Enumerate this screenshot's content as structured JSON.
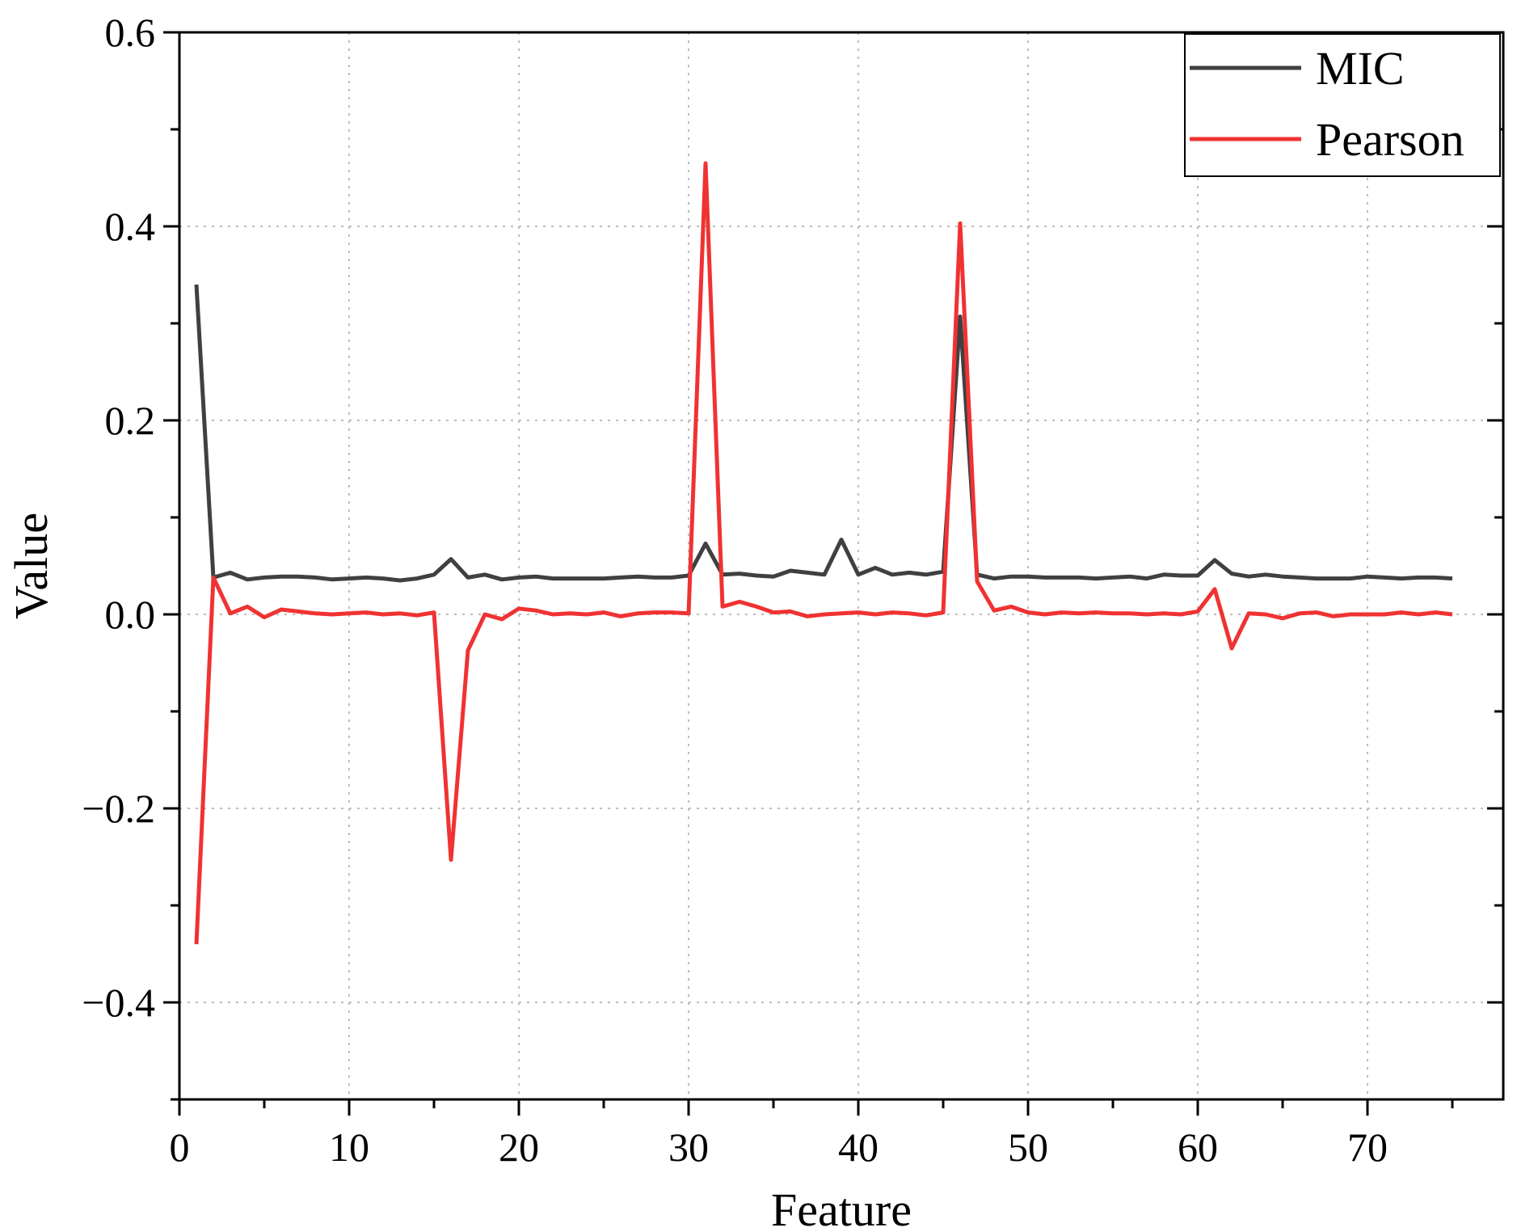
{
  "chart_data": {
    "type": "line",
    "xlabel": "Feature",
    "ylabel": "Value",
    "xlim": [
      0,
      78
    ],
    "ylim": [
      -0.5,
      0.6
    ],
    "xticks": [
      0,
      10,
      20,
      30,
      40,
      50,
      60,
      70
    ],
    "yticks": [
      -0.4,
      -0.2,
      0.0,
      0.2,
      0.4,
      0.6
    ],
    "xtick_labels": [
      "0",
      "10",
      "20",
      "30",
      "40",
      "50",
      "60",
      "70"
    ],
    "ytick_labels": [
      "−0.4",
      "−0.2",
      "0.0",
      "0.2",
      "0.4",
      "0.6"
    ],
    "grid": true,
    "legend_position": "top-right",
    "x": [
      1,
      2,
      3,
      4,
      5,
      6,
      7,
      8,
      9,
      10,
      11,
      12,
      13,
      14,
      15,
      16,
      17,
      18,
      19,
      20,
      21,
      22,
      23,
      24,
      25,
      26,
      27,
      28,
      29,
      30,
      31,
      32,
      33,
      34,
      35,
      36,
      37,
      38,
      39,
      40,
      41,
      42,
      43,
      44,
      45,
      46,
      47,
      48,
      49,
      50,
      51,
      52,
      53,
      54,
      55,
      56,
      57,
      58,
      59,
      60,
      61,
      62,
      63,
      64,
      65,
      66,
      67,
      68,
      69,
      70,
      71,
      72,
      73,
      74,
      75
    ],
    "series": [
      {
        "name": "MIC",
        "color": "#404040",
        "values": [
          0.34,
          0.038,
          0.043,
          0.036,
          0.038,
          0.039,
          0.039,
          0.038,
          0.036,
          0.037,
          0.038,
          0.037,
          0.035,
          0.037,
          0.041,
          0.057,
          0.038,
          0.041,
          0.036,
          0.038,
          0.039,
          0.037,
          0.037,
          0.037,
          0.037,
          0.038,
          0.039,
          0.038,
          0.038,
          0.04,
          0.073,
          0.041,
          0.042,
          0.04,
          0.039,
          0.045,
          0.043,
          0.041,
          0.077,
          0.041,
          0.048,
          0.041,
          0.043,
          0.041,
          0.044,
          0.307,
          0.041,
          0.037,
          0.039,
          0.039,
          0.038,
          0.038,
          0.038,
          0.037,
          0.038,
          0.039,
          0.037,
          0.041,
          0.04,
          0.04,
          0.056,
          0.042,
          0.039,
          0.041,
          0.039,
          0.038,
          0.037,
          0.037,
          0.037,
          0.039,
          0.038,
          0.037,
          0.038,
          0.038,
          0.037
        ]
      },
      {
        "name": "Pearson",
        "color": "#f03232",
        "values": [
          -0.34,
          0.038,
          0.001,
          0.008,
          -0.003,
          0.005,
          0.003,
          0.001,
          0.0,
          0.001,
          0.002,
          0.0,
          0.001,
          -0.001,
          0.002,
          -0.253,
          -0.037,
          0.0,
          -0.005,
          0.006,
          0.004,
          0.0,
          0.001,
          0.0,
          0.002,
          -0.002,
          0.001,
          0.002,
          0.002,
          0.001,
          0.465,
          0.008,
          0.013,
          0.008,
          0.002,
          0.003,
          -0.002,
          0.0,
          0.001,
          0.002,
          0.0,
          0.002,
          0.001,
          -0.001,
          0.002,
          0.403,
          0.034,
          0.004,
          0.008,
          0.002,
          0.0,
          0.002,
          0.001,
          0.002,
          0.001,
          0.001,
          0.0,
          0.001,
          0.0,
          0.003,
          0.026,
          -0.035,
          0.001,
          0.0,
          -0.004,
          0.001,
          0.002,
          -0.002,
          0.0,
          0.0,
          0.0,
          0.002,
          0.0,
          0.002,
          0.0
        ]
      }
    ]
  }
}
